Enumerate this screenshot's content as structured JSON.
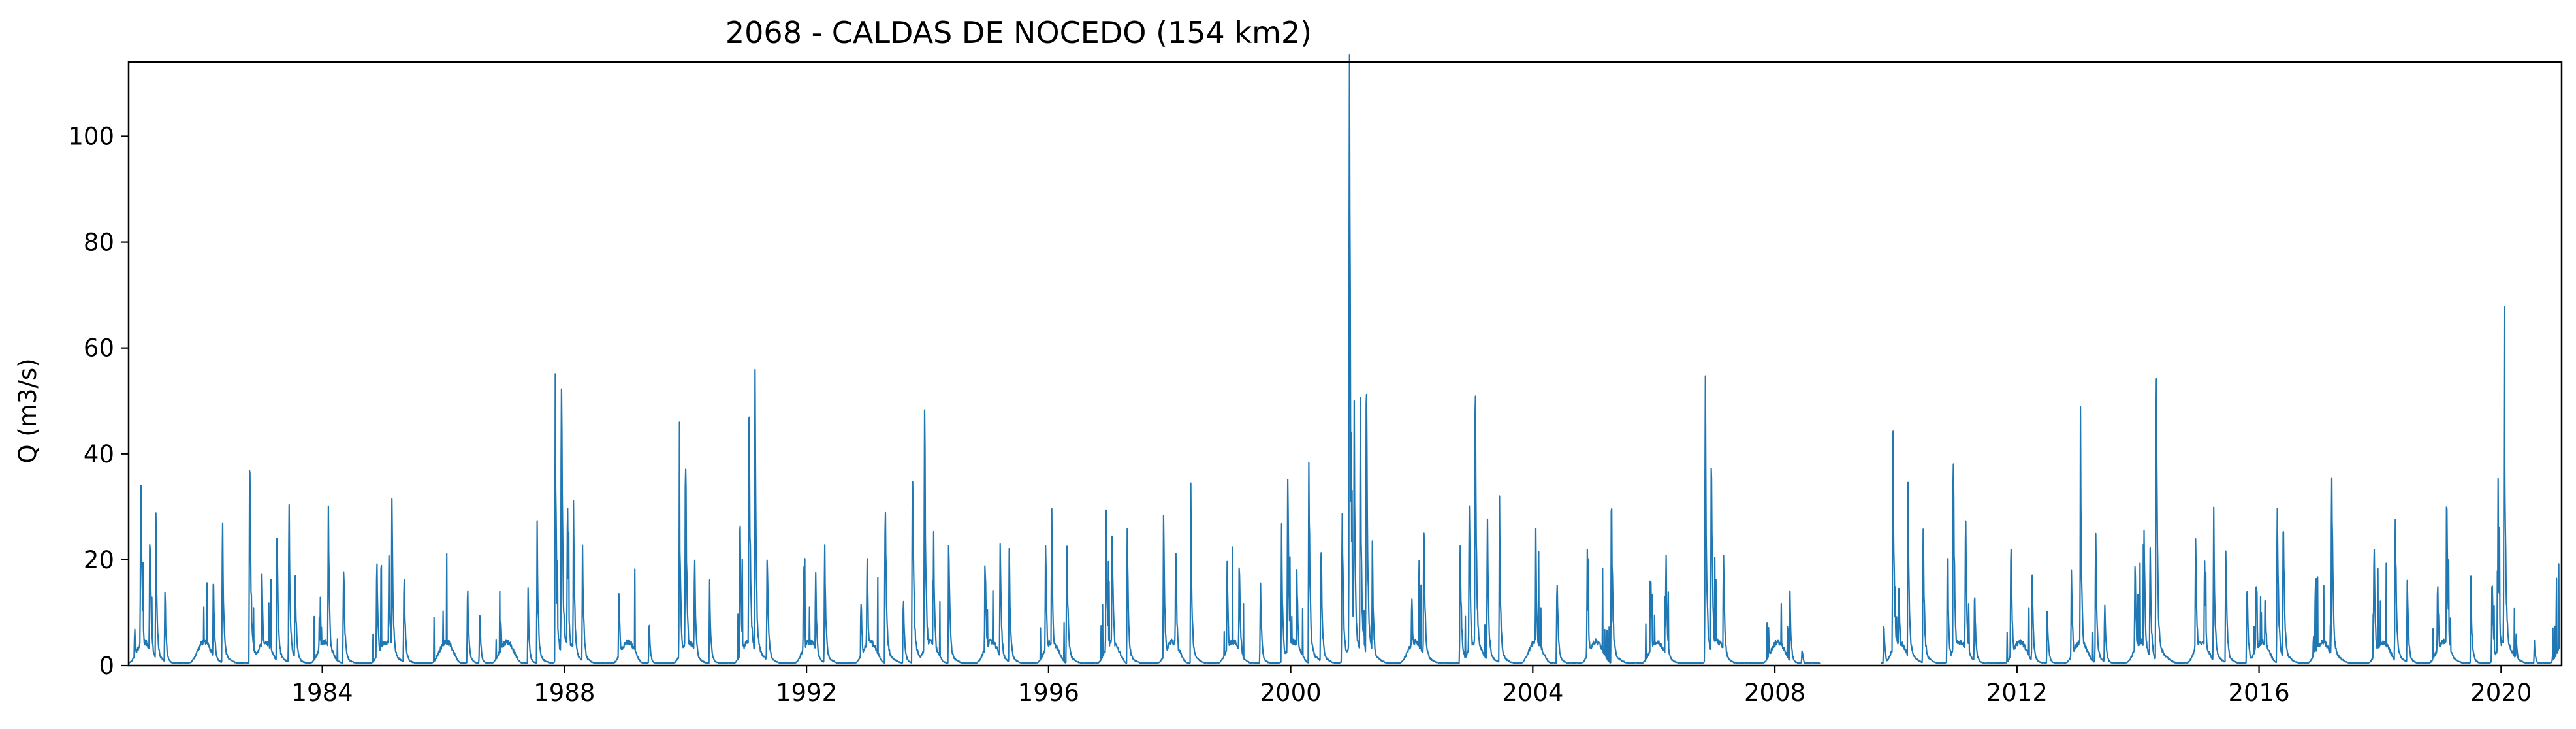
{
  "chart_data": {
    "type": "line",
    "title": "2068 - CALDAS DE NOCEDO (154 km2)",
    "xlabel": "",
    "ylabel": "Q (m3/s)",
    "xlim": [
      1980.8,
      2021.0
    ],
    "ylim": [
      0,
      114
    ],
    "xticks": [
      1984,
      1988,
      1992,
      1996,
      2000,
      2004,
      2008,
      2012,
      2016,
      2020
    ],
    "yticks": [
      0,
      20,
      40,
      60,
      80,
      100
    ],
    "grid": false,
    "legend": "none",
    "color": "#1f77b4",
    "gap": [
      2008.75,
      2009.75
    ],
    "peaks": [
      [
        1980.9,
        7
      ],
      [
        1981.0,
        43
      ],
      [
        1981.15,
        28
      ],
      [
        1981.25,
        25
      ],
      [
        1981.4,
        13
      ],
      [
        1982.2,
        17
      ],
      [
        1982.35,
        27
      ],
      [
        1982.8,
        41
      ],
      [
        1983.0,
        17
      ],
      [
        1983.25,
        27
      ],
      [
        1983.45,
        28
      ],
      [
        1983.55,
        19
      ],
      [
        1983.95,
        8
      ],
      [
        1984.1,
        27
      ],
      [
        1984.35,
        20
      ],
      [
        1984.9,
        21
      ],
      [
        1985.1,
        20
      ],
      [
        1985.15,
        29
      ],
      [
        1985.35,
        18
      ],
      [
        1986.4,
        15
      ],
      [
        1986.6,
        10
      ],
      [
        1986.95,
        8
      ],
      [
        1987.4,
        12
      ],
      [
        1987.55,
        23
      ],
      [
        1987.85,
        45
      ],
      [
        1987.95,
        58
      ],
      [
        1988.05,
        33
      ],
      [
        1988.15,
        28
      ],
      [
        1988.3,
        21
      ],
      [
        1988.9,
        14
      ],
      [
        1989.4,
        8
      ],
      [
        1989.9,
        33
      ],
      [
        1990.0,
        43
      ],
      [
        1990.15,
        21
      ],
      [
        1990.4,
        14
      ],
      [
        1990.9,
        28
      ],
      [
        1991.05,
        54
      ],
      [
        1991.15,
        47
      ],
      [
        1991.35,
        22
      ],
      [
        1991.95,
        17
      ],
      [
        1992.15,
        17
      ],
      [
        1992.3,
        23
      ],
      [
        1992.9,
        13
      ],
      [
        1993.0,
        21
      ],
      [
        1993.3,
        34
      ],
      [
        1993.6,
        14
      ],
      [
        1993.75,
        42
      ],
      [
        1993.95,
        50
      ],
      [
        1994.1,
        23
      ],
      [
        1994.35,
        25
      ],
      [
        1994.95,
        21
      ],
      [
        1995.2,
        22
      ],
      [
        1995.35,
        21
      ],
      [
        1995.95,
        22
      ],
      [
        1996.05,
        27
      ],
      [
        1996.3,
        26
      ],
      [
        1996.95,
        28
      ],
      [
        1997.05,
        28
      ],
      [
        1997.3,
        24
      ],
      [
        1997.9,
        26
      ],
      [
        1998.1,
        22
      ],
      [
        1998.35,
        28
      ],
      [
        1998.95,
        18
      ],
      [
        1999.15,
        20
      ],
      [
        1999.5,
        15
      ],
      [
        1999.85,
        22
      ],
      [
        1999.95,
        37
      ],
      [
        2000.1,
        20
      ],
      [
        2000.3,
        37
      ],
      [
        2000.5,
        25
      ],
      [
        2000.85,
        31
      ],
      [
        2000.97,
        109
      ],
      [
        2001.05,
        42
      ],
      [
        2001.15,
        47
      ],
      [
        2001.25,
        58
      ],
      [
        2001.35,
        20
      ],
      [
        2002.0,
        14
      ],
      [
        2002.2,
        28
      ],
      [
        2002.8,
        24
      ],
      [
        2002.95,
        33
      ],
      [
        2003.05,
        53
      ],
      [
        2003.25,
        27
      ],
      [
        2003.45,
        26
      ],
      [
        2004.05,
        23
      ],
      [
        2004.4,
        17
      ],
      [
        2004.9,
        20
      ],
      [
        2005.3,
        32
      ],
      [
        2005.95,
        15
      ],
      [
        2006.2,
        21
      ],
      [
        2006.85,
        50
      ],
      [
        2006.95,
        40
      ],
      [
        2007.15,
        21
      ],
      [
        2007.9,
        5
      ],
      [
        2008.25,
        12
      ],
      [
        2008.45,
        3
      ],
      [
        2009.8,
        8
      ],
      [
        2009.95,
        45
      ],
      [
        2010.05,
        14
      ],
      [
        2010.2,
        33
      ],
      [
        2010.45,
        26
      ],
      [
        2010.85,
        20
      ],
      [
        2010.95,
        38
      ],
      [
        2011.15,
        30
      ],
      [
        2011.3,
        14
      ],
      [
        2011.9,
        24
      ],
      [
        2012.25,
        17
      ],
      [
        2012.5,
        11
      ],
      [
        2012.9,
        18
      ],
      [
        2013.05,
        36
      ],
      [
        2013.3,
        23
      ],
      [
        2013.45,
        12
      ],
      [
        2013.95,
        19
      ],
      [
        2014.1,
        25
      ],
      [
        2014.2,
        22
      ],
      [
        2014.3,
        55
      ],
      [
        2014.95,
        25
      ],
      [
        2015.1,
        21
      ],
      [
        2015.25,
        27
      ],
      [
        2015.45,
        22
      ],
      [
        2015.8,
        16
      ],
      [
        2015.95,
        16
      ],
      [
        2016.1,
        14
      ],
      [
        2016.3,
        33
      ],
      [
        2016.4,
        31
      ],
      [
        2016.9,
        6
      ],
      [
        2017.2,
        39
      ],
      [
        2017.9,
        24
      ],
      [
        2018.25,
        30
      ],
      [
        2018.45,
        16
      ],
      [
        2018.95,
        17
      ],
      [
        2019.1,
        34
      ],
      [
        2019.5,
        15
      ],
      [
        2019.85,
        18
      ],
      [
        2019.95,
        30
      ],
      [
        2020.05,
        64
      ],
      [
        2020.25,
        5
      ],
      [
        2020.55,
        4
      ],
      [
        2020.85,
        2
      ]
    ]
  }
}
